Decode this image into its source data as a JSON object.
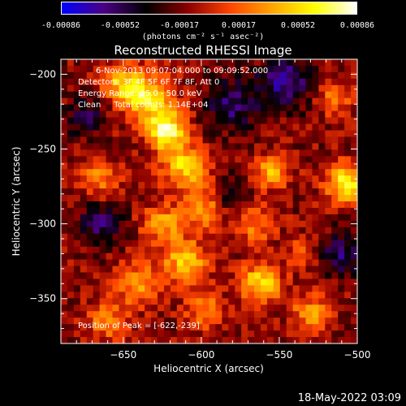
{
  "chart_data": {
    "type": "heatmap",
    "title": "Reconstructed RHESSI Image",
    "xlabel": "Heliocentric X (arcsec)",
    "ylabel": "Heliocentric Y (arcsec)",
    "xlim": [
      -690,
      -500
    ],
    "ylim": [
      -380,
      -190
    ],
    "x_ticks": [
      -650,
      -600,
      -550,
      -500
    ],
    "y_ticks": [
      -200,
      -250,
      -300,
      -350
    ],
    "colorbar": {
      "range": [
        -0.00086,
        0.00086
      ],
      "tick_labels": [
        "-0.00086",
        "-0.00052",
        "-0.00017",
        "0.00017",
        "0.00052",
        "0.00086"
      ],
      "unit_label": "(photons cm⁻² s⁻¹ asec⁻²)",
      "colormap": [
        "#0000ff",
        "#4b0082",
        "#000000",
        "#8b0000",
        "#ff4500",
        "#ffa500",
        "#ffff00",
        "#ffffff"
      ]
    },
    "annotations": {
      "time": "6-Nov-2013 09:07:04.000 to 09:09:52.000",
      "detectors": "Detectors: 3F 4F 5F 6F 7F 8F, Att 0",
      "energy": "Energy Range: 25.0 - 50.0 keV",
      "clean": "Clean     Total counts: 1.14E+04",
      "peak": "Position of Peak = [-622,-239]"
    },
    "peak": [
      -622,
      -239
    ],
    "sources": [
      {
        "x": -622,
        "y": -238,
        "amp": 1.0,
        "sigma": 9
      },
      {
        "x": -635,
        "y": -215,
        "amp": 0.85,
        "sigma": 11
      },
      {
        "x": -652,
        "y": -205,
        "amp": 0.6,
        "sigma": 8
      },
      {
        "x": -610,
        "y": -262,
        "amp": 0.75,
        "sigma": 10
      },
      {
        "x": -600,
        "y": -290,
        "amp": 0.55,
        "sigma": 9
      },
      {
        "x": -610,
        "y": -325,
        "amp": 0.7,
        "sigma": 10
      },
      {
        "x": -625,
        "y": -300,
        "amp": 0.55,
        "sigma": 9
      },
      {
        "x": -640,
        "y": -340,
        "amp": 0.55,
        "sigma": 10
      },
      {
        "x": -598,
        "y": -358,
        "amp": 0.5,
        "sigma": 8
      },
      {
        "x": -562,
        "y": -340,
        "amp": 0.8,
        "sigma": 9
      },
      {
        "x": -555,
        "y": -265,
        "amp": 0.6,
        "sigma": 8
      },
      {
        "x": -565,
        "y": -300,
        "amp": 0.45,
        "sigma": 9
      },
      {
        "x": -507,
        "y": -273,
        "amp": 0.9,
        "sigma": 9
      },
      {
        "x": -515,
        "y": -215,
        "amp": 0.45,
        "sigma": 8
      },
      {
        "x": -530,
        "y": -360,
        "amp": 0.5,
        "sigma": 9
      },
      {
        "x": -665,
        "y": -270,
        "amp": 0.45,
        "sigma": 9
      },
      {
        "x": -660,
        "y": -365,
        "amp": 0.45,
        "sigma": 9
      },
      {
        "x": -535,
        "y": -320,
        "amp": 0.4,
        "sigma": 7
      },
      {
        "x": -580,
        "y": -220,
        "amp": -0.5,
        "sigma": 12
      },
      {
        "x": -545,
        "y": -205,
        "amp": -0.6,
        "sigma": 12
      },
      {
        "x": -665,
        "y": -300,
        "amp": -0.45,
        "sigma": 10
      },
      {
        "x": -510,
        "y": -320,
        "amp": -0.5,
        "sigma": 10
      },
      {
        "x": -675,
        "y": -230,
        "amp": -0.4,
        "sigma": 9
      },
      {
        "x": -580,
        "y": -280,
        "amp": -0.35,
        "sigma": 8
      }
    ]
  },
  "footer": {
    "timestamp": "18-May-2022 03:09"
  }
}
